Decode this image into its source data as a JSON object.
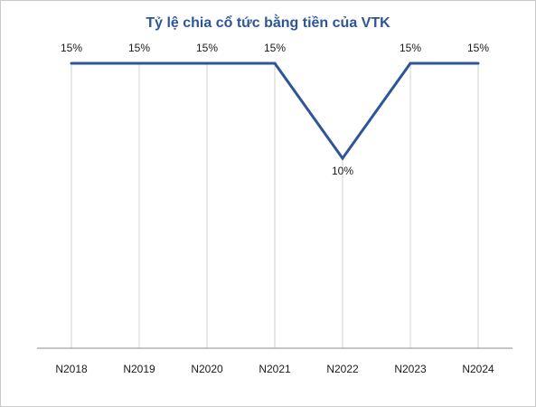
{
  "chart_data": {
    "type": "line",
    "title": "Tỷ lệ chia cổ tức bằng tiền của VTK",
    "categories": [
      "N2018",
      "N2019",
      "N2020",
      "N2021",
      "N2022",
      "N2023",
      "N2024"
    ],
    "values": [
      15,
      15,
      15,
      15,
      10,
      15,
      15
    ],
    "data_labels": [
      "15%",
      "15%",
      "15%",
      "15%",
      "10%",
      "15%",
      "15%"
    ],
    "unit": "%",
    "ylim": [
      0,
      16
    ],
    "grid": "vertical",
    "legend": "none",
    "colors": {
      "line": "#2e5597",
      "title": "#2e5597",
      "grid": "#d0d0d0",
      "axis": "#8c8c8c"
    }
  }
}
